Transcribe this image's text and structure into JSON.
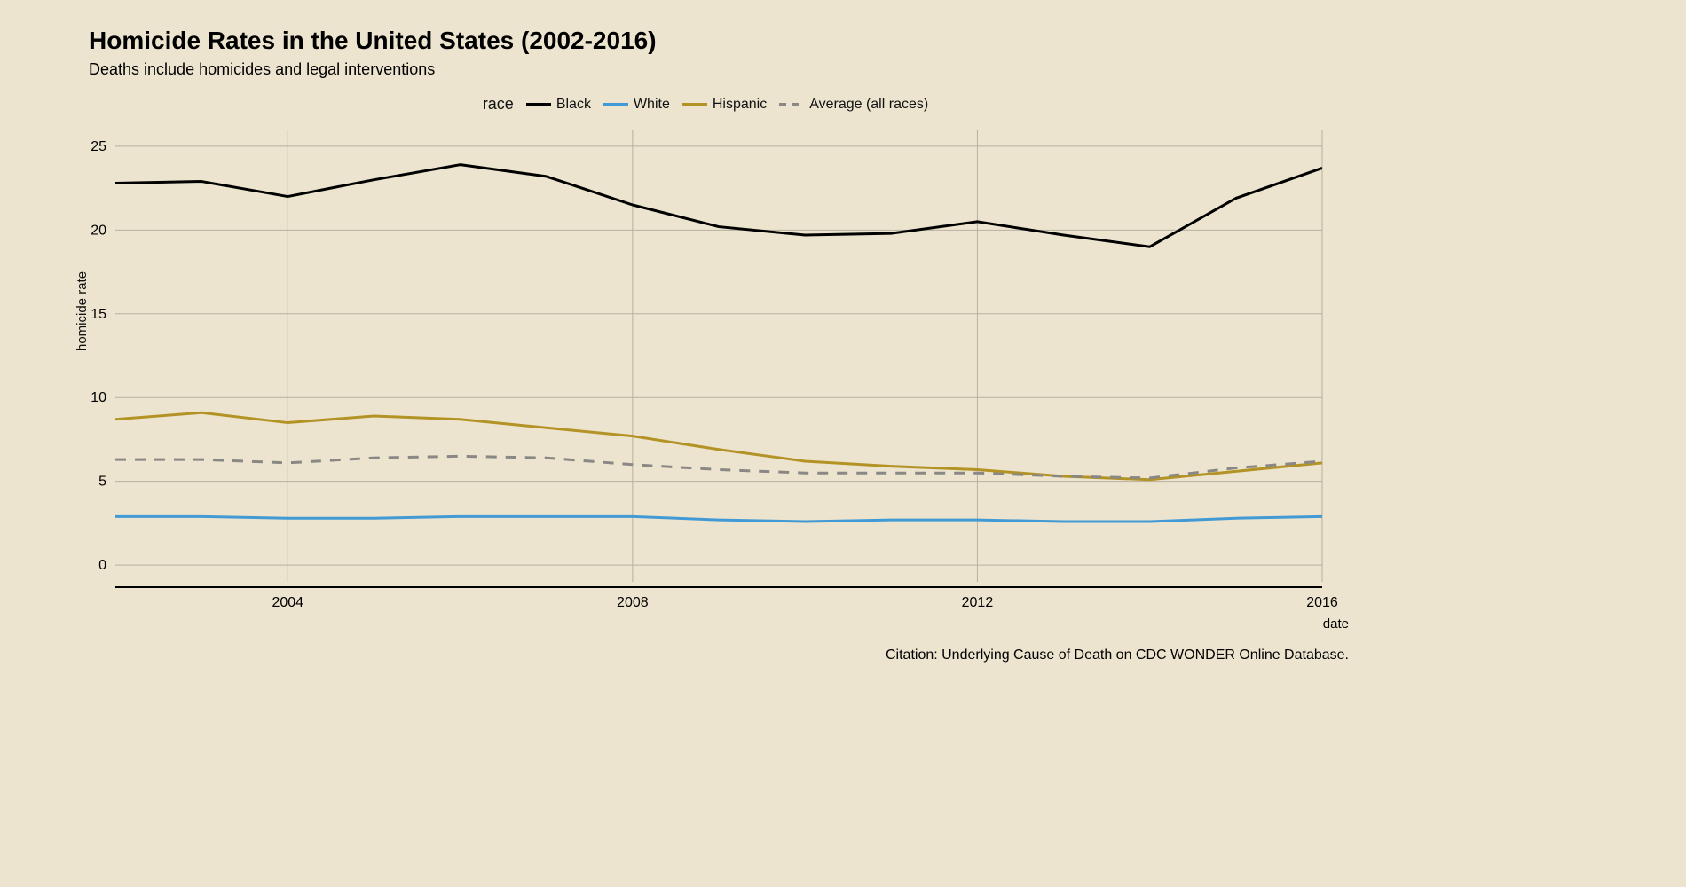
{
  "title": "Homicide Rates in the United States (2002-2016)",
  "subtitle": "Deaths include homicides and legal interventions",
  "citation": "Citation: Underlying Cause of Death on CDC WONDER Online Database.",
  "legend_title": "race",
  "xlabel": "date",
  "ylabel": "homicide rate",
  "background_color": "#ece4ce",
  "grid_color": "#b7b0a0",
  "axis_color": "#000000",
  "title_fontsize": 28,
  "subtitle_fontsize": 18,
  "tick_fontsize": 16,
  "label_fontsize": 15,
  "line_width": 3,
  "xlim": [
    2002,
    2016
  ],
  "ylim": [
    -1,
    26
  ],
  "xticks": [
    2004,
    2008,
    2012,
    2016
  ],
  "yticks": [
    0,
    5,
    10,
    15,
    20,
    25
  ],
  "xtick_labels": [
    "2004",
    "2008",
    "2012",
    "2016"
  ],
  "ytick_labels": [
    "0",
    "5",
    "10",
    "15",
    "20",
    "25"
  ],
  "years": [
    2002,
    2003,
    2004,
    2005,
    2006,
    2007,
    2008,
    2009,
    2010,
    2011,
    2012,
    2013,
    2014,
    2015,
    2016
  ],
  "series": [
    {
      "name": "Black",
      "color": "#000000",
      "dash": "solid",
      "values": [
        22.8,
        22.9,
        22.0,
        23.0,
        23.9,
        23.2,
        21.5,
        20.2,
        19.7,
        19.8,
        20.5,
        19.7,
        19.0,
        21.9,
        23.7
      ]
    },
    {
      "name": "White",
      "color": "#429ad5",
      "dash": "solid",
      "values": [
        2.9,
        2.9,
        2.8,
        2.8,
        2.9,
        2.9,
        2.9,
        2.7,
        2.6,
        2.7,
        2.7,
        2.6,
        2.6,
        2.8,
        2.9
      ]
    },
    {
      "name": "Hispanic",
      "color": "#b39326",
      "dash": "solid",
      "values": [
        8.7,
        9.1,
        8.5,
        8.9,
        8.7,
        8.2,
        7.7,
        6.9,
        6.2,
        5.9,
        5.7,
        5.3,
        5.1,
        5.6,
        6.1
      ]
    },
    {
      "name": "Average (all races)",
      "color": "#8a8885",
      "dash": "dashed",
      "values": [
        6.3,
        6.3,
        6.1,
        6.4,
        6.5,
        6.4,
        6.0,
        5.7,
        5.5,
        5.5,
        5.5,
        5.3,
        5.2,
        5.8,
        6.2
      ]
    }
  ]
}
